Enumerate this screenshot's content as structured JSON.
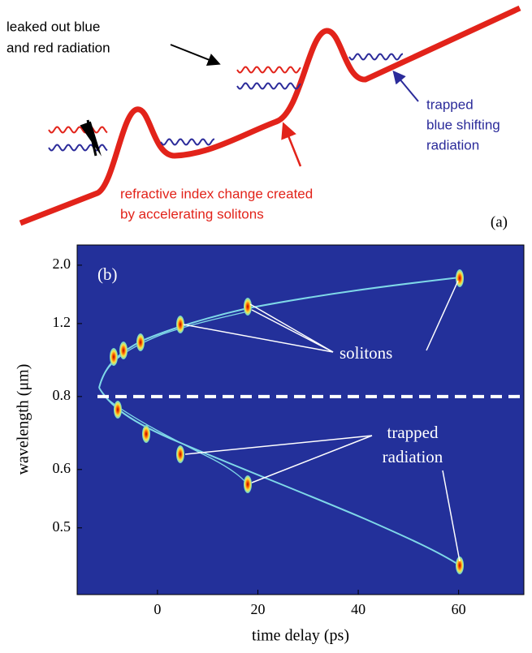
{
  "panel_a": {
    "label": "(a)",
    "leaked_label": [
      "leaked out blue",
      "and red radiation"
    ],
    "trapped_label": [
      "trapped",
      "blue shifting",
      "radiation"
    ],
    "index_label": [
      "refractive index change created",
      "by accelerating solitons"
    ]
  },
  "chart_data": {
    "type": "spectrogram",
    "panel_label": "(b)",
    "xlabel": "time delay (ps)",
    "ylabel": "wavelength (μm)",
    "xlim": [
      -16,
      73
    ],
    "xticks": [
      0,
      20,
      40,
      60
    ],
    "ylim": [
      0.42,
      2.6
    ],
    "yscale": "reciprocal",
    "yticks": [
      {
        "value": 2,
        "label": "2.0"
      },
      1.2,
      0.8,
      0.6,
      0.5
    ],
    "hline": 0.8,
    "annotations": [
      "solitons",
      [
        "trapped",
        "radiation"
      ]
    ]
  }
}
